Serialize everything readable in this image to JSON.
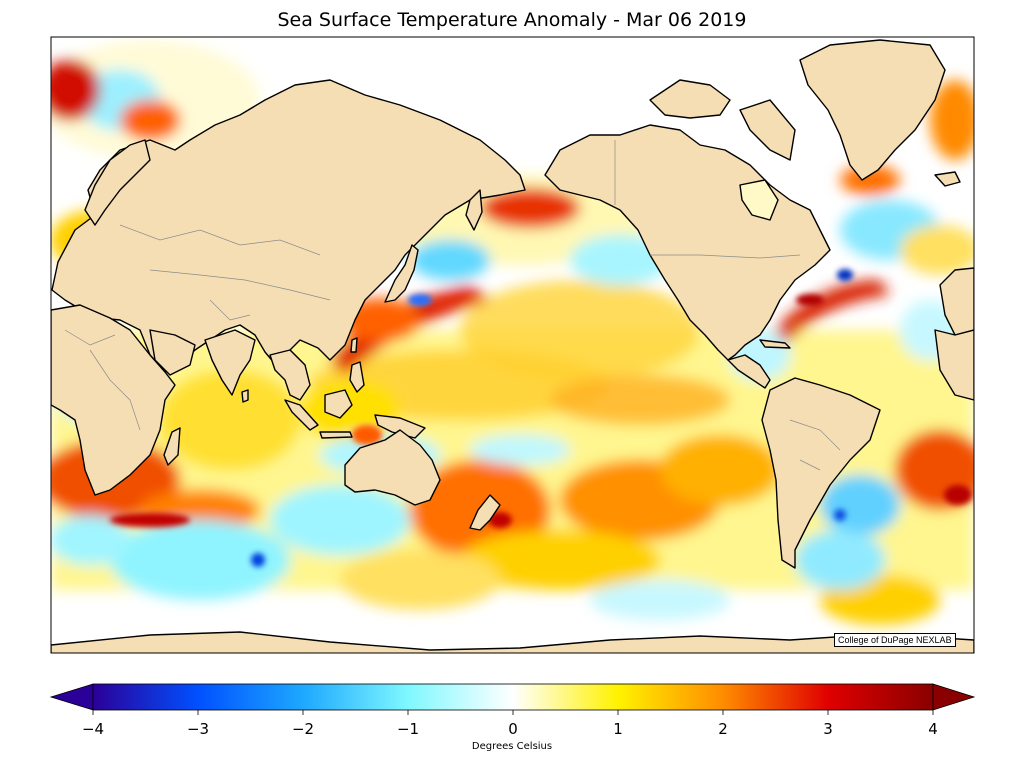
{
  "map": {
    "title": "Sea Surface Temperature Anomaly - Mar 06 2019",
    "credit": "College of DuPage NEXLAB",
    "colors": {
      "land": "#f5deb3",
      "coastline": "#000000",
      "borders": "#8c8c8c",
      "ocean_neutral": "#ffffff"
    },
    "projection": "miller",
    "lon_range": [
      20,
      380
    ],
    "lat_range": [
      -78,
      86
    ]
  },
  "colorbar": {
    "label": "Degrees Celsius",
    "ticks": [
      "−4",
      "−3",
      "−2",
      "−1",
      "0",
      "1",
      "2",
      "3",
      "4"
    ],
    "range": [
      -4,
      4
    ],
    "extend": "both",
    "stops": [
      {
        "v": -4,
        "c": "#2b0098"
      },
      {
        "v": -3,
        "c": "#0050ff"
      },
      {
        "v": -2,
        "c": "#1ea8ff"
      },
      {
        "v": -1,
        "c": "#7ff8ff"
      },
      {
        "v": 0,
        "c": "#ffffff"
      },
      {
        "v": 1,
        "c": "#fff200"
      },
      {
        "v": 2,
        "c": "#ff8c00"
      },
      {
        "v": 3,
        "c": "#e00000"
      },
      {
        "v": 4,
        "c": "#8a0000"
      }
    ]
  }
}
